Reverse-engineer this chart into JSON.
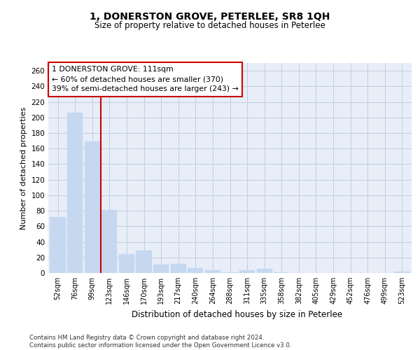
{
  "title": "1, DONERSTON GROVE, PETERLEE, SR8 1QH",
  "subtitle": "Size of property relative to detached houses in Peterlee",
  "xlabel": "Distribution of detached houses by size in Peterlee",
  "ylabel": "Number of detached properties",
  "categories": [
    "52sqm",
    "76sqm",
    "99sqm",
    "123sqm",
    "146sqm",
    "170sqm",
    "193sqm",
    "217sqm",
    "240sqm",
    "264sqm",
    "288sqm",
    "311sqm",
    "335sqm",
    "358sqm",
    "382sqm",
    "405sqm",
    "429sqm",
    "452sqm",
    "476sqm",
    "499sqm",
    "523sqm"
  ],
  "values": [
    72,
    206,
    169,
    81,
    24,
    29,
    11,
    12,
    6,
    4,
    1,
    4,
    5,
    1,
    0,
    0,
    0,
    0,
    0,
    0,
    2
  ],
  "bar_color": "#c5d8f0",
  "bar_edge_color": "#c5d8f0",
  "vline_x": 2.5,
  "vline_color": "#cc0000",
  "annotation_text": "1 DONERSTON GROVE: 111sqm\n← 60% of detached houses are smaller (370)\n39% of semi-detached houses are larger (243) →",
  "annotation_box_color": "white",
  "annotation_box_edge": "#cc0000",
  "ylim": [
    0,
    270
  ],
  "yticks": [
    0,
    20,
    40,
    60,
    80,
    100,
    120,
    140,
    160,
    180,
    200,
    220,
    240,
    260
  ],
  "footer": "Contains HM Land Registry data © Crown copyright and database right 2024.\nContains public sector information licensed under the Open Government Licence v3.0.",
  "bg_color": "#e8eef8",
  "grid_color": "#c0cce0",
  "fig_bg_color": "#ffffff"
}
